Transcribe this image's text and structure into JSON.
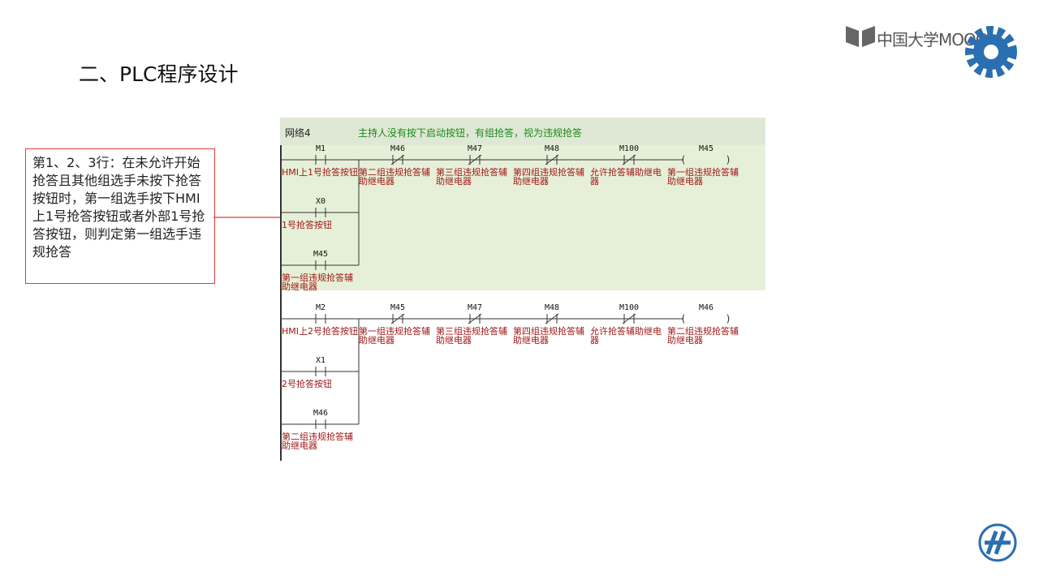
{
  "header": {
    "title": "二、PLC程序设计",
    "logo_text": "中国大学MOOC"
  },
  "callout": {
    "text": "第1、2、3行：在未允许开始抢答且其他组选手未按下抢答按钮时，第一组选手按下HMI上1号抢答按钮或者外部1号抢答按钮，则判定第一组选手违规抢答"
  },
  "ladder": {
    "network": "网络4",
    "comment": "主持人没有按下启动按钮，有组抢答，视为违规抢答",
    "rungs": [
      {
        "branch": [
          {
            "address": "M1",
            "label": "HMI上1号抢答按钮",
            "kind": "NO"
          },
          {
            "address": "X0",
            "label": "1号抢答按钮",
            "kind": "NO"
          },
          {
            "address": "M45",
            "label": "第一组违规抢答辅助继电器",
            "kind": "NO"
          }
        ],
        "series": [
          {
            "address": "M46",
            "label": "第二组违规抢答辅助继电器",
            "kind": "NC"
          },
          {
            "address": "M47",
            "label": "第三组违规抢答辅助继电器",
            "kind": "NC"
          },
          {
            "address": "M48",
            "label": "第四组违规抢答辅助继电器",
            "kind": "NC"
          },
          {
            "address": "M100",
            "label": "允许抢答辅助继电器",
            "kind": "NC"
          }
        ],
        "coil": {
          "address": "M45",
          "label": "第一组违规抢答辅助继电器"
        }
      },
      {
        "branch": [
          {
            "address": "M2",
            "label": "HMI上2号抢答按钮",
            "kind": "NO"
          },
          {
            "address": "X1",
            "label": "2号抢答按钮",
            "kind": "NO"
          },
          {
            "address": "M46",
            "label": "第二组违规抢答辅助继电器",
            "kind": "NO"
          }
        ],
        "series": [
          {
            "address": "M45",
            "label": "第一组违规抢答辅助继电器",
            "kind": "NC"
          },
          {
            "address": "M47",
            "label": "第三组违规抢答辅助继电器",
            "kind": "NC"
          },
          {
            "address": "M48",
            "label": "第四组违规抢答辅助继电器",
            "kind": "NC"
          },
          {
            "address": "M100",
            "label": "允许抢答辅助继电器",
            "kind": "NC"
          }
        ],
        "coil": {
          "address": "M46",
          "label": "第二组违规抢答辅助继电器"
        }
      }
    ]
  }
}
